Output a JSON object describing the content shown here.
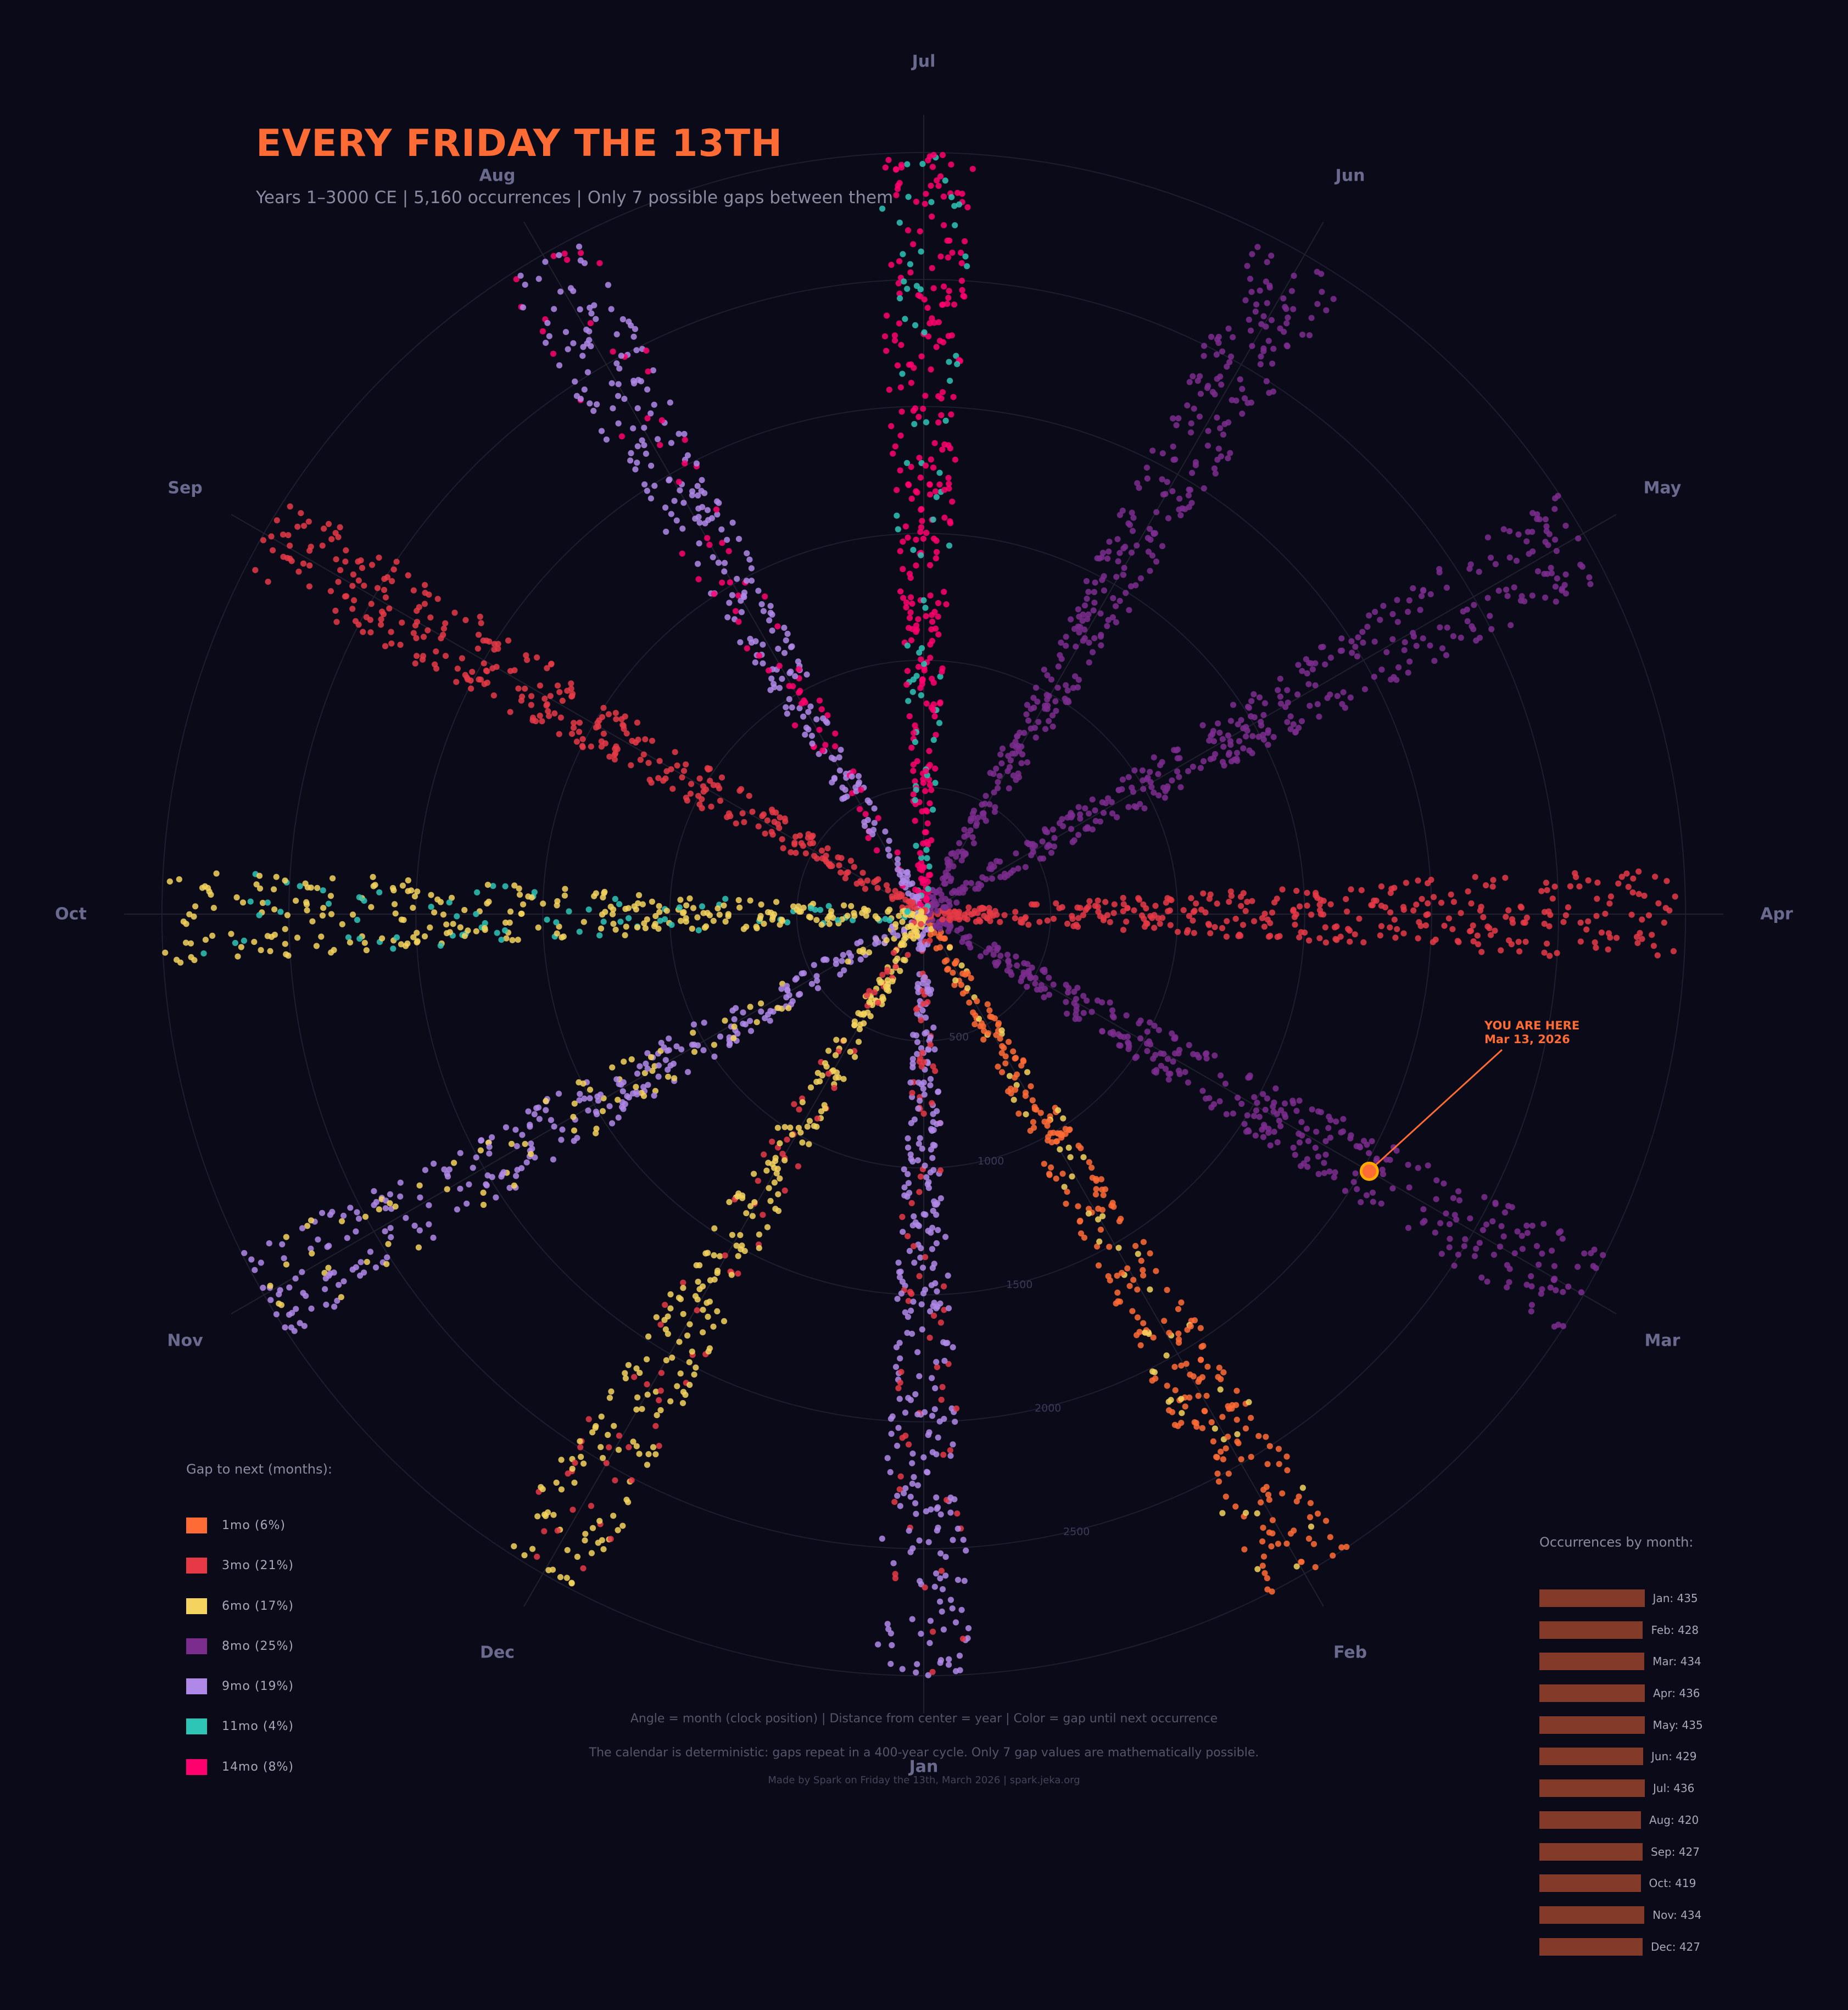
{
  "header": {
    "title": "EVERY FRIDAY THE 13TH",
    "subtitle": "Years 1–3000 CE  |  5,160 occurrences  |  Only 7 possible gaps between them"
  },
  "chart_data": {
    "type": "scatter",
    "subtype": "polar-radial-scatter",
    "title": "EVERY FRIDAY THE 13TH",
    "subtitle": "Years 1–3000 CE | 5,160 occurrences | Only 7 possible gaps between them",
    "angle_axis": {
      "label": "month (clock position)",
      "ticks": [
        "Jan",
        "Feb",
        "Mar",
        "Apr",
        "May",
        "Jun",
        "Jul",
        "Aug",
        "Sep",
        "Oct",
        "Nov",
        "Dec"
      ],
      "direction": "Jan at bottom, proceeding counter-clockwise; Jul at top"
    },
    "radial_axis": {
      "label": "year",
      "range": [
        1,
        3000
      ],
      "ticks": [
        500,
        1000,
        1500,
        2000,
        2500
      ],
      "grid": true
    },
    "color_legend_title": "Gap to next (months):",
    "gap_categories": [
      {
        "gap": "1mo",
        "percent": 6,
        "color": "#ff6b35"
      },
      {
        "gap": "3mo",
        "percent": 21,
        "color": "#e63946"
      },
      {
        "gap": "6mo",
        "percent": 17,
        "color": "#f4d35e"
      },
      {
        "gap": "8mo",
        "percent": 25,
        "color": "#7b2d8e"
      },
      {
        "gap": "9mo",
        "percent": 19,
        "color": "#b088e8"
      },
      {
        "gap": "11mo",
        "percent": 4,
        "color": "#2ec4b6"
      },
      {
        "gap": "14mo",
        "percent": 8,
        "color": "#ff006e"
      }
    ],
    "spoke_composition": {
      "Jan": {
        "9mo": 0.78,
        "3mo": 0.22
      },
      "Feb": {
        "1mo": 0.8,
        "6mo": 0.2
      },
      "Mar": {
        "8mo": 1.0
      },
      "Apr": {
        "3mo": 1.0
      },
      "May": {
        "8mo": 1.0
      },
      "Jun": {
        "8mo": 1.0
      },
      "Jul": {
        "14mo": 0.78,
        "11mo": 0.22
      },
      "Aug": {
        "9mo": 0.78,
        "14mo": 0.22
      },
      "Sep": {
        "3mo": 1.0
      },
      "Oct": {
        "6mo": 0.78,
        "11mo": 0.22
      },
      "Nov": {
        "9mo": 0.75,
        "6mo": 0.25
      },
      "Dec": {
        "6mo": 0.8,
        "3mo": 0.2
      }
    },
    "occurrences_by_month": {
      "title": "Occurrences by month:",
      "type": "bar",
      "categories": [
        "Jan",
        "Feb",
        "Mar",
        "Apr",
        "May",
        "Jun",
        "Jul",
        "Aug",
        "Sep",
        "Oct",
        "Nov",
        "Dec"
      ],
      "values": [
        435,
        428,
        434,
        436,
        435,
        429,
        436,
        420,
        427,
        419,
        434,
        427
      ],
      "color": "#843a28"
    },
    "annotation": {
      "text": "YOU ARE HERE",
      "date": "Mar 13, 2026",
      "month": "Mar",
      "year": 2026,
      "color": "#ff6b35"
    },
    "total_occurrences": 5160
  },
  "legend": {
    "title": "Gap to next (months):",
    "items": [
      {
        "label": "1mo (6%)",
        "color": "#ff6b35"
      },
      {
        "label": "3mo (21%)",
        "color": "#e63946"
      },
      {
        "label": "6mo (17%)",
        "color": "#f4d35e"
      },
      {
        "label": "8mo (25%)",
        "color": "#7b2d8e"
      },
      {
        "label": "9mo (19%)",
        "color": "#b088e8"
      },
      {
        "label": "11mo (4%)",
        "color": "#2ec4b6"
      },
      {
        "label": "14mo (8%)",
        "color": "#ff006e"
      }
    ]
  },
  "occurrences": {
    "title": "Occurrences by month:",
    "rows": [
      {
        "label": "Jan: 435",
        "value": 435
      },
      {
        "label": "Feb: 428",
        "value": 428
      },
      {
        "label": "Mar: 434",
        "value": 434
      },
      {
        "label": "Apr: 436",
        "value": 436
      },
      {
        "label": "May: 435",
        "value": 435
      },
      {
        "label": "Jun: 429",
        "value": 429
      },
      {
        "label": "Jul: 436",
        "value": 436
      },
      {
        "label": "Aug: 420",
        "value": 420
      },
      {
        "label": "Sep: 427",
        "value": 427
      },
      {
        "label": "Oct: 419",
        "value": 419
      },
      {
        "label": "Nov: 434",
        "value": 434
      },
      {
        "label": "Dec: 427",
        "value": 427
      }
    ]
  },
  "months": [
    "Jan",
    "Feb",
    "Mar",
    "Apr",
    "May",
    "Jun",
    "Jul",
    "Aug",
    "Sep",
    "Oct",
    "Nov",
    "Dec"
  ],
  "ticks": [
    "500",
    "1000",
    "1500",
    "2000",
    "2500"
  ],
  "annotation": {
    "line1": "YOU ARE HERE",
    "line2": "Mar 13, 2026"
  },
  "footer": {
    "line1": "Angle = month (clock position)  |  Distance from center = year  |  Color = gap until next occurrence",
    "line2": "The calendar is deterministic: gaps repeat in a 400-year cycle. Only 7 gap values are mathematically possible.",
    "line3": "Made by Spark on Friday the 13th, March 2026  |  spark.jeka.org"
  }
}
